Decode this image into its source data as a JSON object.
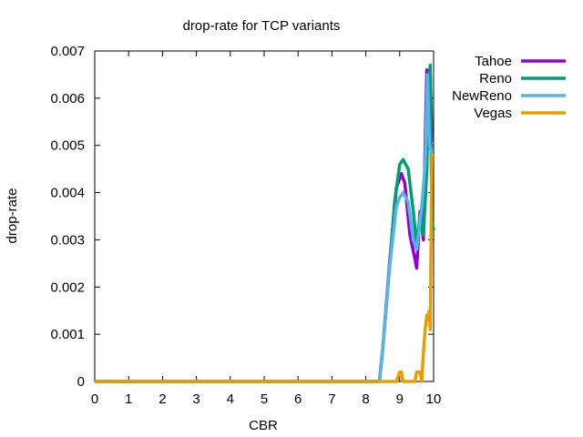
{
  "chart_data": {
    "type": "line",
    "title": "drop-rate for TCP variants",
    "xlabel": "CBR",
    "ylabel": "drop-rate",
    "xlim": [
      0,
      10
    ],
    "ylim": [
      0,
      0.007
    ],
    "x_ticks": [
      "0",
      "1",
      "2",
      "3",
      "4",
      "5",
      "6",
      "7",
      "8",
      "9",
      "10"
    ],
    "y_ticks": [
      "0",
      "0.001",
      "0.002",
      "0.003",
      "0.004",
      "0.005",
      "0.006",
      "0.007"
    ],
    "grid": false,
    "legend_position": "outside-right",
    "series": [
      {
        "name": "Tahoe",
        "color": "#9400d3",
        "points": [
          [
            0,
            0
          ],
          [
            8.4,
            0
          ],
          [
            8.5,
            0.0007
          ],
          [
            8.7,
            0.0025
          ],
          [
            8.9,
            0.0041
          ],
          [
            9.05,
            0.0044
          ],
          [
            9.15,
            0.0042
          ],
          [
            9.3,
            0.0031
          ],
          [
            9.45,
            0.0026
          ],
          [
            9.5,
            0.0024
          ],
          [
            9.6,
            0.0036
          ],
          [
            9.7,
            0.003
          ],
          [
            9.75,
            0.005
          ],
          [
            9.8,
            0.0066
          ],
          [
            9.85,
            0.0064
          ],
          [
            9.9,
            0.0066
          ],
          [
            9.95,
            0.0051
          ],
          [
            10,
            0.0051
          ]
        ]
      },
      {
        "name": "Reno",
        "color": "#009e73",
        "points": [
          [
            0,
            0
          ],
          [
            8.4,
            0
          ],
          [
            8.5,
            0.0007
          ],
          [
            8.7,
            0.0024
          ],
          [
            8.85,
            0.0038
          ],
          [
            9.0,
            0.0046
          ],
          [
            9.1,
            0.0047
          ],
          [
            9.25,
            0.0045
          ],
          [
            9.4,
            0.0036
          ],
          [
            9.5,
            0.0029
          ],
          [
            9.6,
            0.0035
          ],
          [
            9.7,
            0.0031
          ],
          [
            9.8,
            0.0045
          ],
          [
            9.85,
            0.0061
          ],
          [
            9.9,
            0.0067
          ],
          [
            9.95,
            0.0034
          ],
          [
            10,
            0.0032
          ]
        ]
      },
      {
        "name": "NewReno",
        "color": "#56b4e9",
        "points": [
          [
            0,
            0
          ],
          [
            8.4,
            0
          ],
          [
            8.5,
            0.0007
          ],
          [
            8.7,
            0.0024
          ],
          [
            8.9,
            0.0037
          ],
          [
            9.0,
            0.0039
          ],
          [
            9.1,
            0.004
          ],
          [
            9.25,
            0.0038
          ],
          [
            9.4,
            0.003
          ],
          [
            9.5,
            0.0028
          ],
          [
            9.65,
            0.0037
          ],
          [
            9.75,
            0.0046
          ],
          [
            9.82,
            0.0065
          ],
          [
            9.88,
            0.005
          ],
          [
            9.95,
            0.0048
          ],
          [
            10,
            0.0048
          ]
        ]
      },
      {
        "name": "Vegas",
        "color": "#e69f00",
        "points": [
          [
            0,
            0
          ],
          [
            8.9,
            0
          ],
          [
            9.0,
            0.0002
          ],
          [
            9.05,
            0.0002
          ],
          [
            9.1,
            0
          ],
          [
            9.45,
            0
          ],
          [
            9.5,
            0.0002
          ],
          [
            9.6,
            0.0002
          ],
          [
            9.65,
            0
          ],
          [
            9.7,
            0.0006
          ],
          [
            9.75,
            0.0011
          ],
          [
            9.8,
            0.0014
          ],
          [
            9.83,
            0.0013
          ],
          [
            9.87,
            0.0015
          ],
          [
            9.9,
            0.0011
          ],
          [
            9.95,
            0.0048
          ],
          [
            10,
            0.0048
          ]
        ]
      }
    ]
  }
}
